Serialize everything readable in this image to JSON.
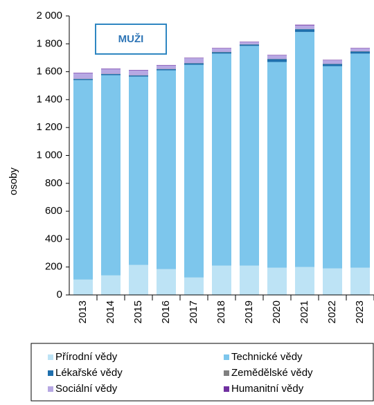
{
  "chart_data": {
    "type": "stacked_bar",
    "annotation": "MUŽI",
    "y_label": "osoby",
    "categories": [
      "2013",
      "2014",
      "2015",
      "2016",
      "2017",
      "2018",
      "2019",
      "2020",
      "2021",
      "2022",
      "2023"
    ],
    "series": [
      {
        "name": "Přírodní vědy",
        "color": "#bde3f5",
        "values": [
          110,
          140,
          215,
          185,
          125,
          210,
          210,
          195,
          200,
          190,
          195
        ]
      },
      {
        "name": "Technické vědy",
        "color": "#7dc6ec",
        "values": [
          1430,
          1435,
          1350,
          1425,
          1525,
          1520,
          1575,
          1475,
          1685,
          1450,
          1535
        ]
      },
      {
        "name": "Lékařské vědy",
        "color": "#1f6fad",
        "values": [
          8,
          8,
          8,
          8,
          10,
          10,
          10,
          20,
          20,
          15,
          15
        ]
      },
      {
        "name": "Zemědělské vědy",
        "color": "#808080",
        "values": [
          2,
          2,
          2,
          2,
          2,
          2,
          2,
          2,
          2,
          2,
          2
        ]
      },
      {
        "name": "Sociální vědy",
        "color": "#b7a8e3",
        "values": [
          40,
          35,
          35,
          25,
          35,
          25,
          15,
          25,
          25,
          25,
          20
        ]
      },
      {
        "name": "Humanitní vědy",
        "color": "#7030a0",
        "values": [
          3,
          3,
          3,
          3,
          3,
          3,
          3,
          3,
          5,
          3,
          3
        ]
      }
    ],
    "ylim": [
      0,
      2000
    ],
    "yticks": [
      0,
      200,
      400,
      600,
      800,
      {
        "value": 1000,
        "label": "1 000"
      },
      {
        "value": 1200,
        "label": "1 200"
      },
      {
        "value": 1400,
        "label": "1 400"
      },
      {
        "value": 1600,
        "label": "1 600"
      },
      {
        "value": 1800,
        "label": "1 800"
      },
      {
        "value": 2000,
        "label": "2 000"
      }
    ],
    "grid": false
  }
}
